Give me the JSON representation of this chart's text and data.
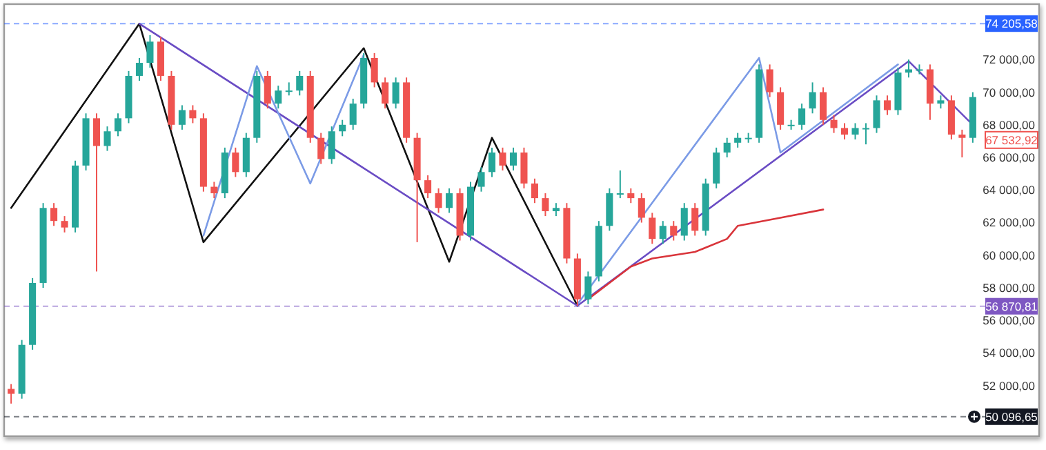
{
  "chart_data": {
    "type": "candlestick",
    "categories": [
      null,
      null,
      null,
      null,
      null,
      null,
      null,
      null,
      null,
      null,
      null,
      null,
      null,
      null,
      null,
      null,
      null,
      null,
      null,
      null,
      null,
      null,
      null,
      null,
      null,
      null,
      null,
      null,
      null,
      null,
      null,
      null,
      null,
      null,
      null,
      null,
      null,
      null,
      null,
      null,
      null,
      null,
      null,
      null,
      null,
      null,
      null,
      null,
      null,
      null,
      null,
      null,
      null,
      null,
      null,
      null,
      null,
      null,
      null,
      null,
      null,
      null,
      null,
      null,
      null,
      null,
      null,
      null,
      null,
      null,
      null,
      null,
      null,
      null,
      null,
      null,
      null,
      null,
      null,
      null,
      null,
      null,
      null,
      null,
      null,
      null,
      null,
      null,
      null,
      null,
      null
    ],
    "ohlc": [
      [
        51800,
        52100,
        50900,
        51500
      ],
      [
        51500,
        54800,
        51200,
        54500
      ],
      [
        54500,
        58600,
        54200,
        58300
      ],
      [
        58300,
        63200,
        58000,
        62900
      ],
      [
        62900,
        63200,
        61800,
        62100
      ],
      [
        62100,
        62400,
        61400,
        61700
      ],
      [
        61700,
        65800,
        61400,
        65500
      ],
      [
        65500,
        68700,
        65200,
        68400
      ],
      [
        68400,
        68700,
        59000,
        66700
      ],
      [
        66700,
        67900,
        66400,
        67600
      ],
      [
        67600,
        68700,
        67300,
        68400
      ],
      [
        68400,
        71300,
        68100,
        71000
      ],
      [
        71000,
        72100,
        70700,
        71800
      ],
      [
        71800,
        73500,
        71500,
        73100
      ],
      [
        73100,
        73400,
        70700,
        71000
      ],
      [
        71000,
        71300,
        67700,
        68000
      ],
      [
        68000,
        69200,
        67700,
        68900
      ],
      [
        68900,
        69200,
        68100,
        68400
      ],
      [
        68400,
        68700,
        63900,
        64200
      ],
      [
        64200,
        64500,
        63500,
        63800
      ],
      [
        63800,
        66600,
        63500,
        66300
      ],
      [
        66300,
        66600,
        64800,
        65100
      ],
      [
        65100,
        67500,
        64800,
        67200
      ],
      [
        67200,
        71300,
        66900,
        71000
      ],
      [
        71000,
        71300,
        69000,
        69300
      ],
      [
        69300,
        70400,
        69000,
        70100
      ],
      [
        70100,
        70600,
        69800,
        70100
      ],
      [
        70100,
        71300,
        69800,
        71000
      ],
      [
        71000,
        71300,
        66900,
        67200
      ],
      [
        67200,
        67500,
        65600,
        65900
      ],
      [
        65900,
        67900,
        65600,
        67600
      ],
      [
        67600,
        68300,
        67300,
        68000
      ],
      [
        68000,
        69600,
        67700,
        69300
      ],
      [
        69300,
        72400,
        69000,
        72100
      ],
      [
        72100,
        72400,
        70300,
        70600
      ],
      [
        70600,
        70900,
        69000,
        69300
      ],
      [
        69300,
        70900,
        69000,
        70600
      ],
      [
        70600,
        70900,
        66900,
        67200
      ],
      [
        67200,
        67500,
        60800,
        64600
      ],
      [
        64600,
        64900,
        63500,
        63800
      ],
      [
        63800,
        64100,
        62600,
        62900
      ],
      [
        62900,
        64100,
        62600,
        63800
      ],
      [
        63800,
        64100,
        60900,
        61200
      ],
      [
        61200,
        64500,
        60900,
        64200
      ],
      [
        64200,
        65400,
        63900,
        65100
      ],
      [
        65100,
        66600,
        64800,
        66300
      ],
      [
        66300,
        66600,
        65200,
        65500
      ],
      [
        65500,
        66600,
        65200,
        66300
      ],
      [
        66300,
        66600,
        64100,
        64400
      ],
      [
        64400,
        64700,
        63200,
        63500
      ],
      [
        63500,
        63800,
        62400,
        62700
      ],
      [
        62700,
        63200,
        62400,
        62900
      ],
      [
        62900,
        63200,
        59500,
        59800
      ],
      [
        59800,
        60100,
        56900,
        57300
      ],
      [
        57300,
        59000,
        57000,
        58700
      ],
      [
        58700,
        62100,
        58400,
        61800
      ],
      [
        61800,
        64100,
        61500,
        63800
      ],
      [
        63800,
        65200,
        63500,
        63800
      ],
      [
        63800,
        64100,
        63200,
        63500
      ],
      [
        63500,
        63800,
        62000,
        62300
      ],
      [
        62300,
        62600,
        60700,
        61000
      ],
      [
        61000,
        62100,
        60700,
        61800
      ],
      [
        61800,
        62100,
        60900,
        61200
      ],
      [
        61200,
        63200,
        60900,
        62900
      ],
      [
        62900,
        63200,
        61200,
        61500
      ],
      [
        61500,
        64700,
        61200,
        64400
      ],
      [
        64400,
        66600,
        64100,
        66300
      ],
      [
        66300,
        67200,
        66000,
        66900
      ],
      [
        66900,
        67500,
        66600,
        67200
      ],
      [
        67200,
        67500,
        66900,
        67200
      ],
      [
        67200,
        71700,
        66900,
        71400
      ],
      [
        71400,
        71700,
        69700,
        70000
      ],
      [
        70000,
        70300,
        67700,
        68000
      ],
      [
        68000,
        68300,
        67700,
        68000
      ],
      [
        68000,
        69300,
        67700,
        69000
      ],
      [
        69000,
        70600,
        68700,
        70000
      ],
      [
        70000,
        70300,
        68000,
        68300
      ],
      [
        68300,
        68600,
        67500,
        67800
      ],
      [
        67800,
        68100,
        67100,
        67400
      ],
      [
        67400,
        68100,
        67100,
        67800
      ],
      [
        67800,
        68100,
        66800,
        67800
      ],
      [
        67800,
        69800,
        67500,
        69500
      ],
      [
        69500,
        69800,
        68600,
        68900
      ],
      [
        68900,
        71500,
        68600,
        71200
      ],
      [
        71200,
        72000,
        70900,
        71400
      ],
      [
        71400,
        71700,
        71100,
        71400
      ],
      [
        71400,
        71700,
        68300,
        69300
      ],
      [
        69300,
        69800,
        69000,
        69500
      ],
      [
        69500,
        69800,
        67100,
        67400
      ],
      [
        67400,
        67700,
        66000,
        67200
      ],
      [
        67200,
        70000,
        66900,
        69700
      ]
    ],
    "series": [
      {
        "type": "line",
        "color": "#111111",
        "values": [
          62900,
          null,
          null,
          null,
          null,
          null,
          null,
          null,
          null,
          null,
          null,
          null,
          74200,
          null,
          null,
          null,
          null,
          null,
          60800,
          null,
          null,
          null,
          null,
          null,
          null,
          null,
          null,
          null,
          null,
          null,
          null,
          null,
          null,
          72700,
          null,
          null,
          null,
          null,
          null,
          null,
          null,
          59600,
          null,
          null,
          null,
          67200,
          null,
          null,
          null,
          null,
          null,
          null,
          null,
          56900,
          null,
          null,
          null,
          null,
          null,
          null,
          null,
          null,
          null,
          null,
          null,
          null,
          null,
          null,
          null,
          null,
          null,
          null,
          null,
          null,
          null,
          null,
          null,
          null,
          null,
          null,
          null,
          null,
          null,
          null,
          null,
          null,
          null,
          null,
          null,
          null,
          null
        ]
      },
      {
        "type": "line",
        "color": "#6a4cc4",
        "values": [
          null,
          null,
          null,
          null,
          null,
          null,
          null,
          null,
          null,
          null,
          null,
          null,
          74200,
          null,
          null,
          null,
          null,
          null,
          null,
          null,
          null,
          null,
          null,
          null,
          null,
          null,
          null,
          null,
          null,
          null,
          null,
          null,
          null,
          null,
          null,
          null,
          null,
          null,
          null,
          null,
          null,
          null,
          null,
          null,
          null,
          null,
          null,
          null,
          null,
          null,
          null,
          null,
          null,
          56900,
          null,
          null,
          null,
          null,
          null,
          null,
          null,
          null,
          null,
          null,
          null,
          null,
          null,
          null,
          null,
          null,
          null,
          null,
          null,
          null,
          null,
          null,
          null,
          null,
          null,
          null,
          null,
          null,
          null,
          null,
          71900,
          null,
          null,
          null,
          null,
          null,
          68000
        ]
      },
      {
        "type": "line",
        "color": "#7b9be6",
        "values": [
          null,
          null,
          null,
          null,
          null,
          null,
          null,
          null,
          null,
          null,
          null,
          null,
          null,
          null,
          null,
          null,
          null,
          null,
          61200,
          null,
          null,
          null,
          null,
          71600,
          null,
          null,
          null,
          null,
          64400,
          null,
          null,
          null,
          null,
          72300,
          null,
          null,
          null,
          null,
          null,
          null,
          null,
          null,
          null,
          null,
          null,
          null,
          null,
          null,
          null,
          null,
          null,
          null,
          null,
          null,
          null,
          null,
          null,
          null,
          null,
          null,
          null,
          null,
          null,
          null,
          null,
          null,
          null,
          null,
          null,
          null,
          null,
          null,
          null,
          null,
          null,
          null,
          null,
          null,
          null,
          null,
          null,
          null,
          null,
          null,
          null,
          null,
          null,
          null,
          null,
          null,
          null
        ]
      },
      {
        "type": "line",
        "color": "#7b9be6",
        "values": [
          null,
          null,
          null,
          null,
          null,
          null,
          null,
          null,
          null,
          null,
          null,
          null,
          null,
          null,
          null,
          null,
          null,
          null,
          null,
          null,
          null,
          null,
          null,
          null,
          null,
          null,
          null,
          null,
          null,
          null,
          null,
          null,
          null,
          null,
          null,
          null,
          null,
          null,
          null,
          null,
          null,
          null,
          null,
          null,
          null,
          null,
          null,
          null,
          null,
          null,
          null,
          null,
          null,
          57000,
          null,
          null,
          null,
          null,
          null,
          null,
          null,
          null,
          null,
          null,
          null,
          null,
          null,
          null,
          null,
          null,
          72100,
          null,
          66300,
          null,
          null,
          null,
          null,
          null,
          null,
          null,
          null,
          null,
          null,
          71700,
          null,
          null,
          null,
          null,
          null,
          null,
          null
        ]
      },
      {
        "type": "line",
        "color": "#d9343a",
        "values": [
          null,
          null,
          null,
          null,
          null,
          null,
          null,
          null,
          null,
          null,
          null,
          null,
          null,
          null,
          null,
          null,
          null,
          null,
          null,
          null,
          null,
          null,
          null,
          null,
          null,
          null,
          null,
          null,
          null,
          null,
          null,
          null,
          null,
          null,
          null,
          null,
          null,
          null,
          null,
          null,
          null,
          null,
          null,
          null,
          null,
          null,
          null,
          null,
          null,
          null,
          null,
          null,
          null,
          null,
          57300,
          null,
          null,
          null,
          59300,
          null,
          59800,
          null,
          null,
          null,
          60200,
          null,
          null,
          61000,
          61800,
          null,
          null,
          null,
          62300,
          null,
          null,
          null,
          62800,
          null,
          null,
          null,
          null,
          null,
          null,
          null,
          null,
          null,
          null,
          null,
          null,
          null,
          null
        ]
      }
    ],
    "ylim": [
      48900,
      75400
    ],
    "yticks": [
      {
        "value": 52000,
        "label": "52 000,00"
      },
      {
        "value": 54000,
        "label": "54 000,00"
      },
      {
        "value": 56000,
        "label": "56 000,00"
      },
      {
        "value": 58000,
        "label": "58 000,00"
      },
      {
        "value": 60000,
        "label": "60 000,00"
      },
      {
        "value": 62000,
        "label": "62 000,00"
      },
      {
        "value": 64000,
        "label": "64 000,00"
      },
      {
        "value": 66000,
        "label": "66 000,00"
      },
      {
        "value": 68000,
        "label": "68 000,00"
      },
      {
        "value": 70000,
        "label": "70 000,00"
      },
      {
        "value": 72000,
        "label": "72 000,00"
      }
    ],
    "ref_lines": [
      {
        "axis": "y",
        "value": 74205.58,
        "label": "74 205,58",
        "color": "#2962ff",
        "line_style": "dashed"
      },
      {
        "axis": "y",
        "value": 56870.81,
        "label": "56 870,81",
        "color": "#7e57c2",
        "line_style": "dashed"
      },
      {
        "axis": "y",
        "value": 50096.65,
        "label": "50 096,65",
        "color": "#131722",
        "line_style": "dashed"
      }
    ],
    "annotations": [
      "67 532,92"
    ]
  }
}
